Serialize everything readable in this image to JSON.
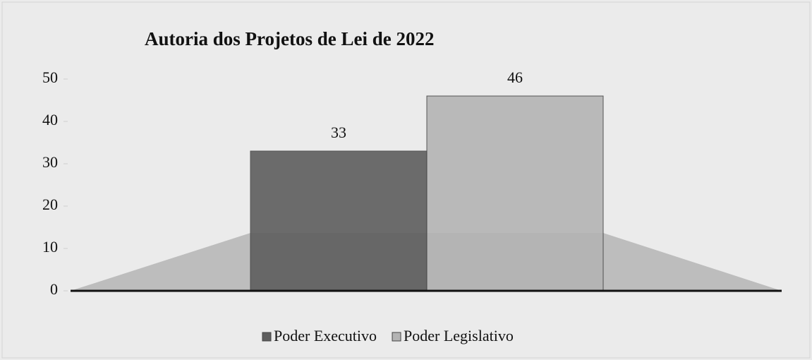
{
  "chart_data": {
    "type": "bar",
    "title": "Autoria dos Projetos de Lei de 2022",
    "categories": [
      null
    ],
    "series": [
      {
        "name": "Poder Executivo",
        "color": "#5e5e5e",
        "values": [
          33
        ]
      },
      {
        "name": "Poder Legislativo",
        "color": "#b4b4b4",
        "values": [
          46
        ]
      }
    ],
    "ylim": [
      0,
      50
    ],
    "yticks": [
      0,
      10,
      20,
      30,
      40,
      50
    ],
    "legend": "bottom"
  }
}
